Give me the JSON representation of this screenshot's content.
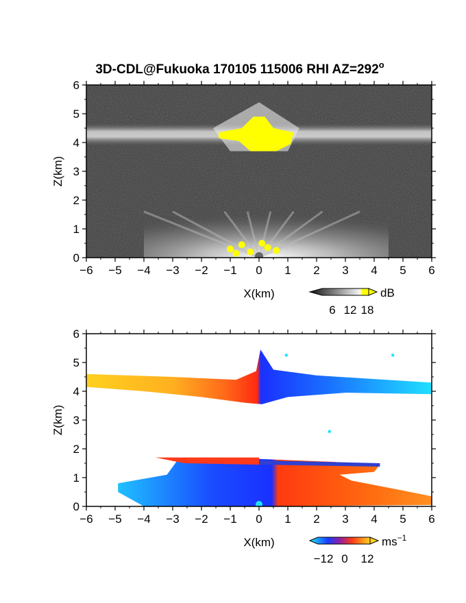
{
  "figure": {
    "title": "3D-CDL@Fukuoka 170105 115006 RHI AZ=292",
    "title_superscript": "o"
  },
  "colors": {
    "reflectivity_bg": "#2f2f2f",
    "reflectivity_high": "#ffff00",
    "velocity_negative": "#1a3cff",
    "velocity_positive": "#ff3a1a",
    "velocity_far_negative": "#20e0ff",
    "velocity_far_positive": "#ffcc20"
  },
  "chart_data": [
    {
      "type": "heatmap",
      "name": "reflectivity",
      "xlabel": "X(km)",
      "ylabel": "Z(km)",
      "xlim": [
        -6,
        6
      ],
      "ylim": [
        0,
        6
      ],
      "xticks": [
        "−6",
        "−5",
        "−4",
        "−3",
        "−2",
        "−1",
        "0",
        "1",
        "2",
        "3",
        "4",
        "5",
        "6"
      ],
      "yticks": [
        "0",
        "1",
        "2",
        "3",
        "4",
        "5",
        "6"
      ],
      "colorbar": {
        "unit": "dB",
        "ticks": [
          "6",
          "12",
          "18"
        ],
        "range": [
          0,
          20
        ]
      },
      "layers": [
        {
          "z_bottom": 3.9,
          "z_top": 4.65,
          "x_range": [
            -6,
            6
          ],
          "level_db": 10
        },
        {
          "z_bottom": 0.0,
          "z_top": 1.7,
          "x_range": [
            -4,
            4.5
          ],
          "level_db": 8
        }
      ],
      "max_region": {
        "x_range": [
          -1.4,
          1.2
        ],
        "z_range": [
          3.7,
          4.9
        ],
        "level_db": 18
      }
    },
    {
      "type": "heatmap",
      "name": "doppler_velocity",
      "xlabel": "X(km)",
      "ylabel": "Z(km)",
      "xlim": [
        -6,
        6
      ],
      "ylim": [
        0,
        6
      ],
      "xticks": [
        "−6",
        "−5",
        "−4",
        "−3",
        "−2",
        "−1",
        "0",
        "1",
        "2",
        "3",
        "4",
        "5",
        "6"
      ],
      "yticks": [
        "0",
        "1",
        "2",
        "3",
        "4",
        "5",
        "6"
      ],
      "colorbar": {
        "unit": "ms",
        "unit_exponent": "−1",
        "ticks": [
          "−12",
          "0",
          "12"
        ],
        "range": [
          -15,
          15
        ]
      },
      "layers": [
        {
          "z_bottom": 3.55,
          "z_top": 4.7,
          "x_range": [
            -6,
            6
          ],
          "velocity_left_ms": 12,
          "velocity_right_ms": -12
        },
        {
          "z_bottom": 0.0,
          "z_top": 1.7,
          "x_range": [
            -5,
            6
          ],
          "velocity_left_ms": -8,
          "velocity_right_ms": 8
        }
      ]
    }
  ]
}
